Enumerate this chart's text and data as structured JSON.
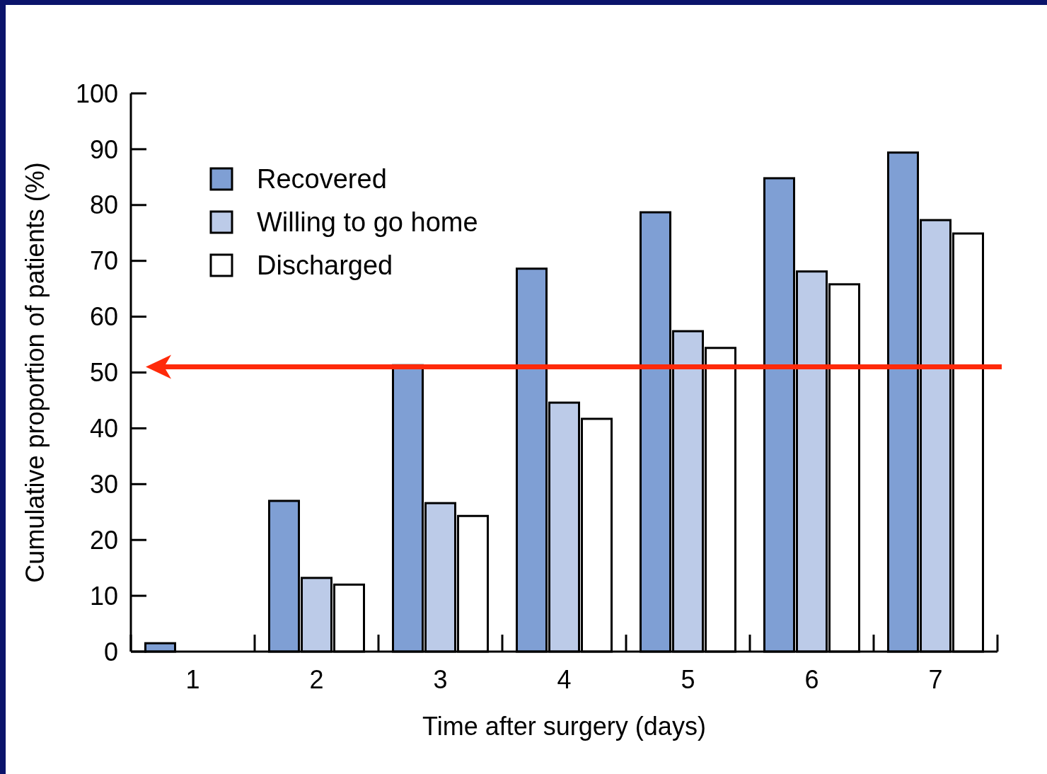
{
  "chart_data": {
    "type": "bar",
    "xlabel": "Time after surgery (days)",
    "ylabel": "Cumulative proportion of patients (%)",
    "categories": [
      "1",
      "2",
      "3",
      "4",
      "5",
      "6",
      "7"
    ],
    "series": [
      {
        "name": "Recovered",
        "color": "#7f9fd4",
        "values": [
          1.5,
          27,
          51.3,
          68.6,
          78.7,
          84.8,
          89.4
        ]
      },
      {
        "name": "Willing to go home",
        "color": "#bccbe8",
        "values": [
          0,
          13.2,
          26.6,
          44.6,
          57.4,
          68.1,
          77.3
        ]
      },
      {
        "name": "Discharged",
        "color": "#ffffff",
        "values": [
          0,
          12,
          24.3,
          41.7,
          54.4,
          65.8,
          74.9
        ]
      }
    ],
    "ylim": [
      0,
      100
    ],
    "yticks": [
      0,
      10,
      20,
      30,
      40,
      50,
      60,
      70,
      80,
      90,
      100
    ],
    "grid": false,
    "legend": "top left",
    "ref_lines": [
      {
        "axis": "y",
        "value": 51,
        "color": "#ff2a0a"
      }
    ]
  }
}
